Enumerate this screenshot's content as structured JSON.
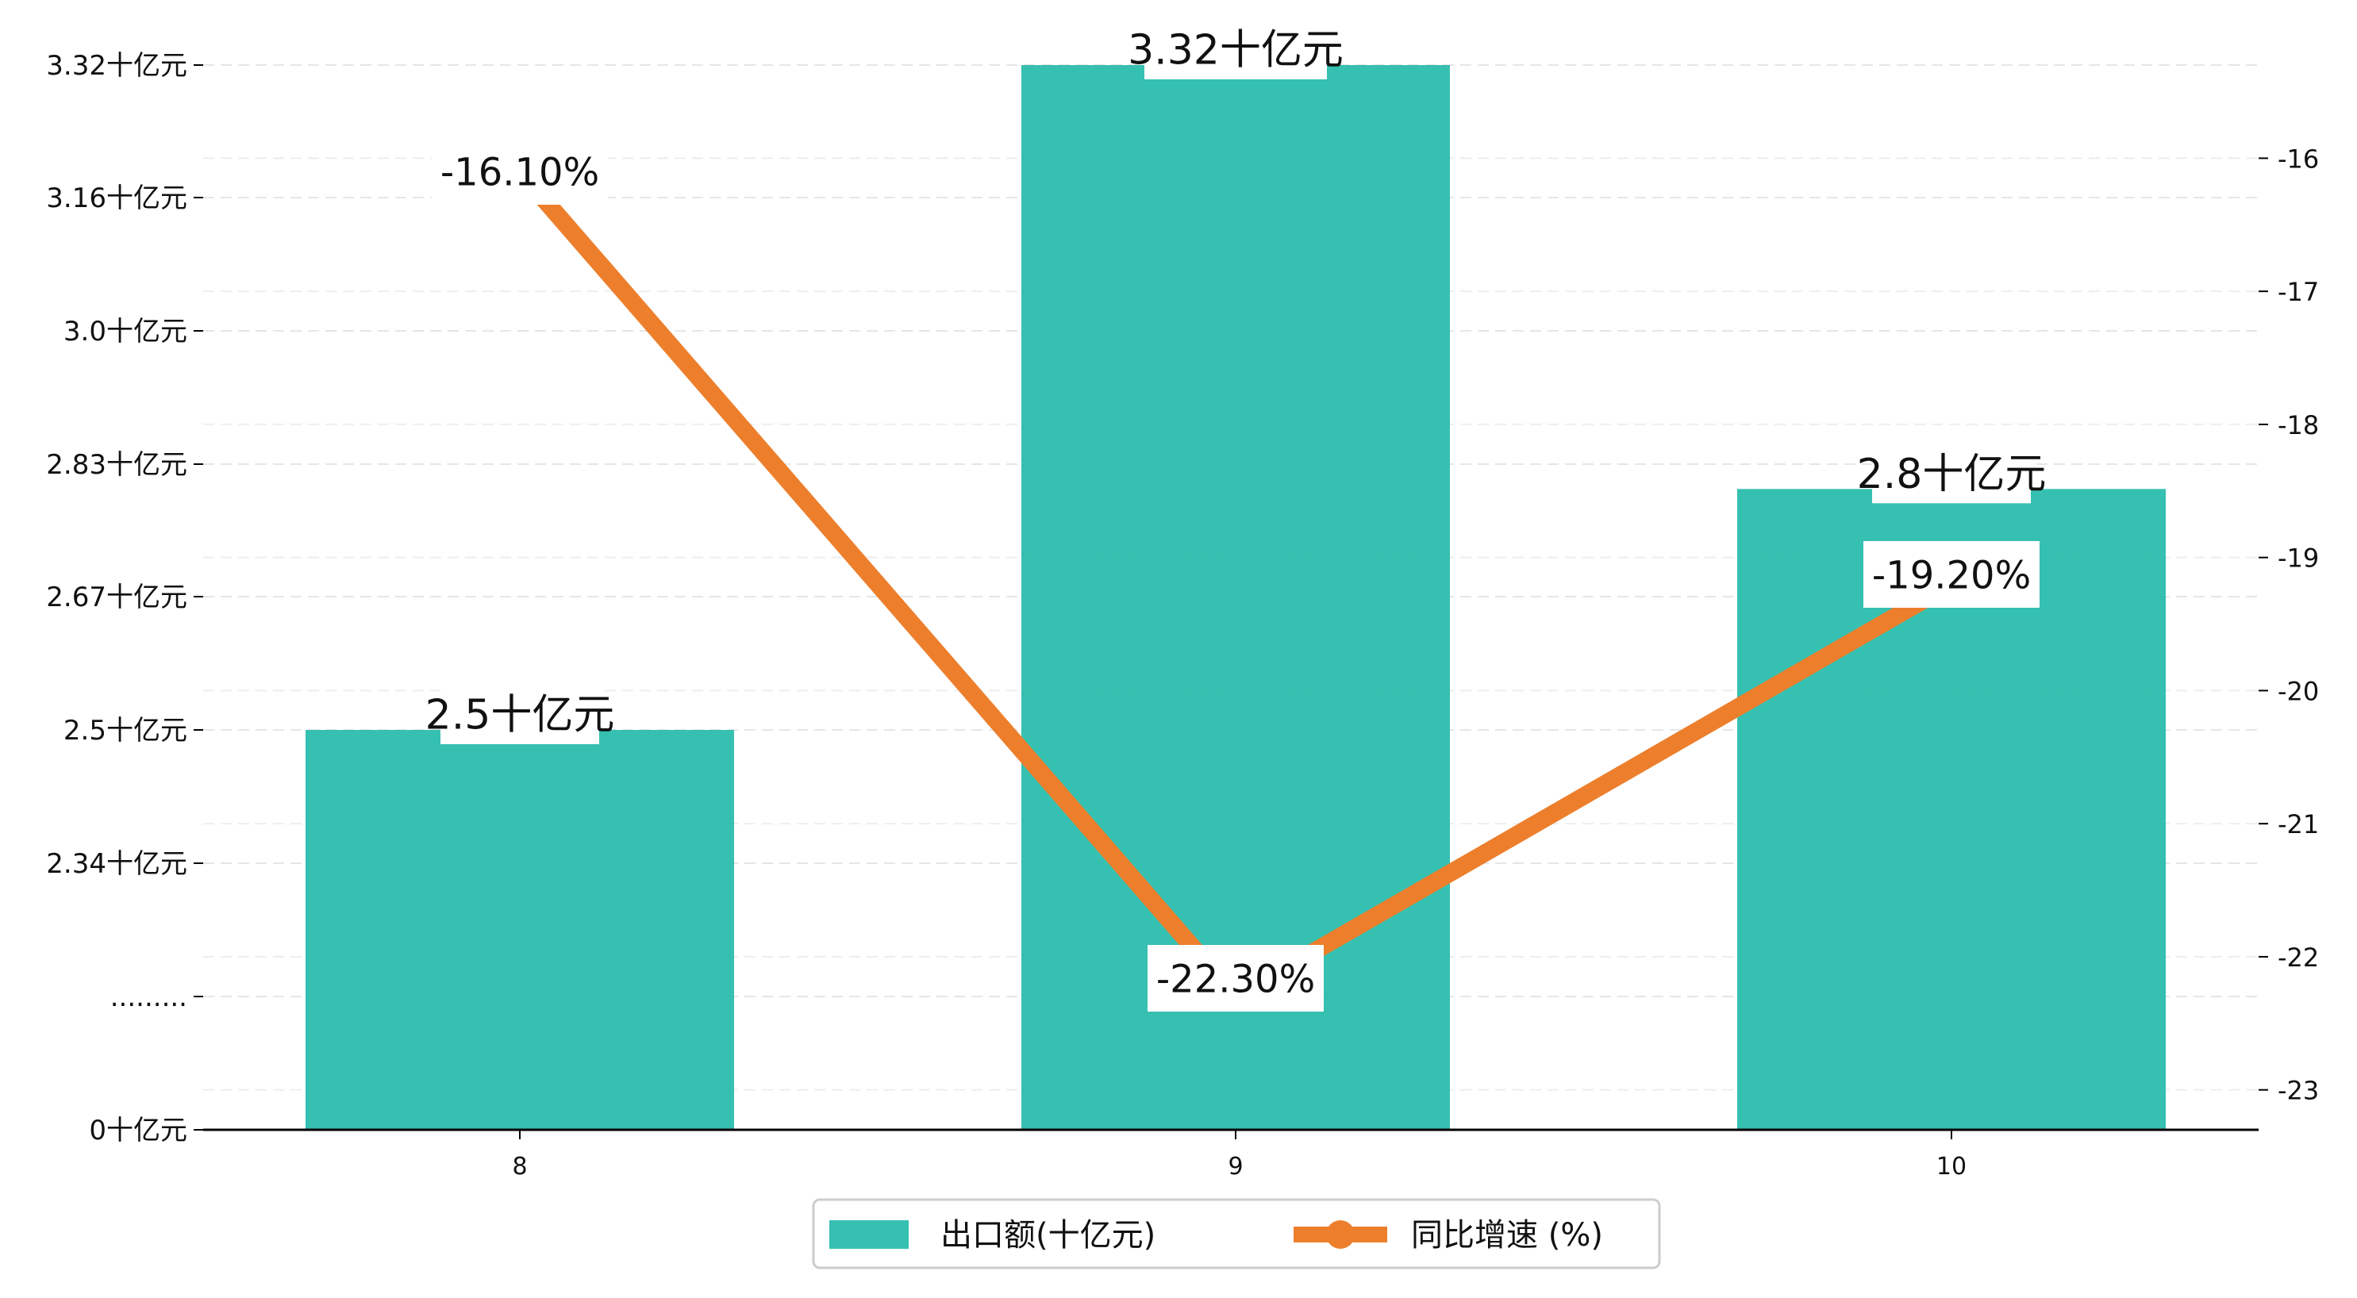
{
  "chart_data": {
    "type": "bar",
    "categories": [
      "8",
      "9",
      "10"
    ],
    "series": [
      {
        "name": "出口额(十亿元)",
        "type": "bar",
        "axis": "left",
        "color": "#20b9a8",
        "values": [
          2.5,
          3.32,
          2.8
        ],
        "value_labels": [
          "2.5十亿元",
          "3.32十亿元",
          "2.8十亿元"
        ]
      },
      {
        "name": "同比增速 (%)",
        "type": "line",
        "axis": "right",
        "color": "#ed7f2c",
        "values": [
          -16.1,
          -22.3,
          -19.2
        ],
        "value_labels": [
          "-16.10%",
          "-22.30%",
          "-19.20%"
        ]
      }
    ],
    "y_left": {
      "ticks": [
        {
          "label": "0十亿元",
          "value": 0
        },
        {
          "label": ".........",
          "value": null
        },
        {
          "label": "2.34十亿元",
          "value": 2.34
        },
        {
          "label": "2.5十亿元",
          "value": 2.5
        },
        {
          "label": "2.67十亿元",
          "value": 2.67
        },
        {
          "label": "2.83十亿元",
          "value": 2.83
        },
        {
          "label": "3.0十亿元",
          "value": 3.0
        },
        {
          "label": "3.16十亿元",
          "value": 3.16
        },
        {
          "label": "3.32十亿元",
          "value": 3.32
        }
      ]
    },
    "y_right": {
      "ticks": [
        "-23",
        "-22",
        "-21",
        "-20",
        "-19",
        "-18",
        "-17",
        "-16"
      ],
      "ylim": [
        -23.3,
        -15.3
      ]
    },
    "legend": {
      "position": "bottom-center"
    },
    "grid": true
  }
}
